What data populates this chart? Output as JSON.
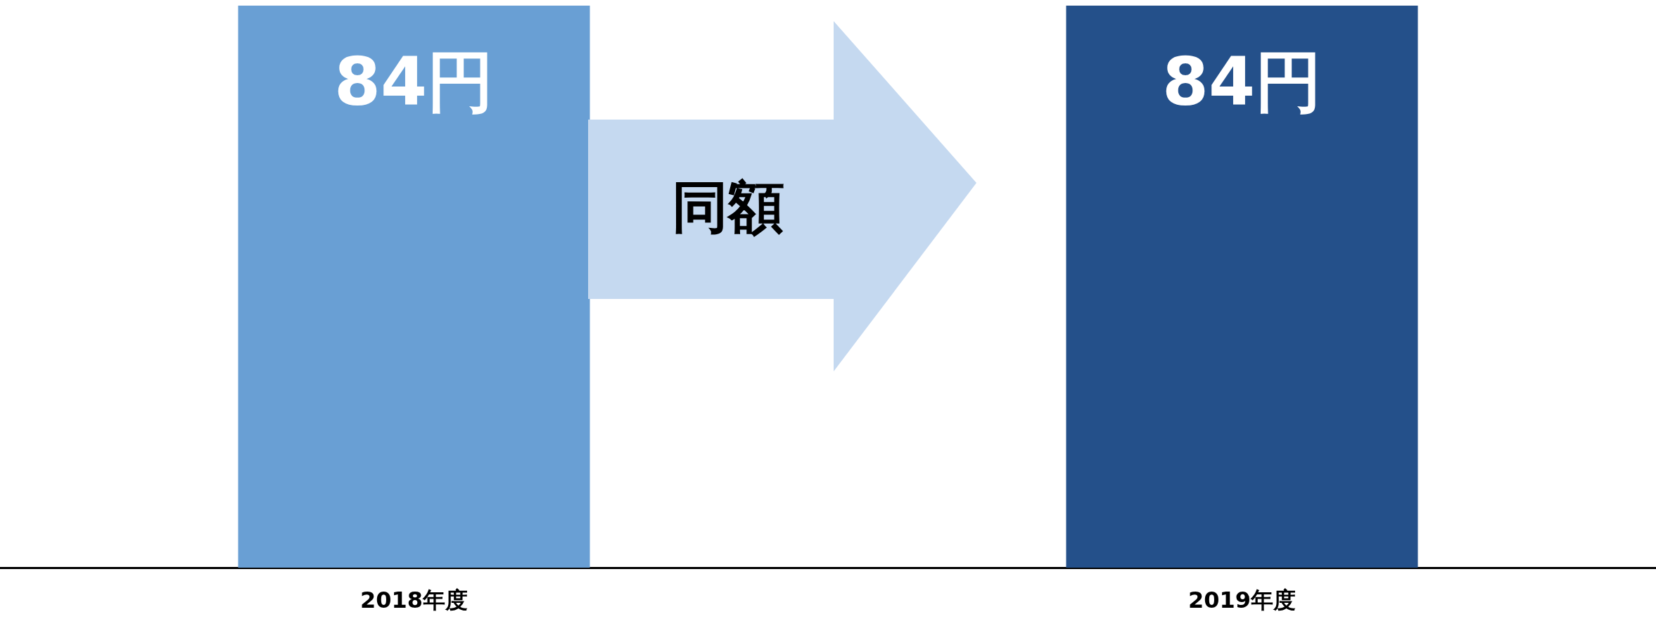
{
  "chart_data": {
    "type": "bar",
    "categories": [
      "2018年度",
      "2019年度"
    ],
    "values": [
      84,
      84
    ],
    "colors": [
      "#699fd4",
      "#24508a"
    ],
    "value_labels": [
      "84円",
      "84円"
    ],
    "annotations": [
      "同額"
    ]
  }
}
